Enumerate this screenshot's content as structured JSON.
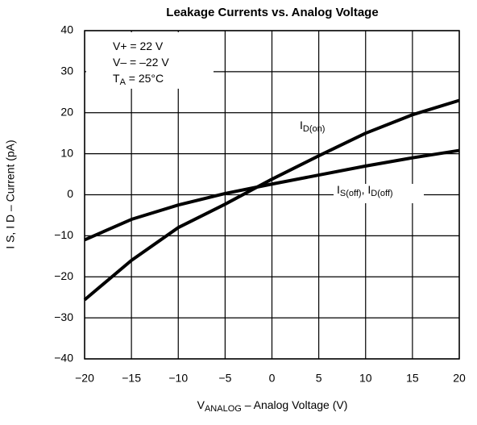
{
  "chart_data": {
    "type": "line",
    "title": "Leakage Currents vs. Analog Voltage",
    "x_label_parts": [
      "V",
      "ANALOG",
      " – Analog Voltage (V)"
    ],
    "y_label": "I S, I D – Current (pA)",
    "annotations": [
      [
        "V+ = 22 V"
      ],
      [
        "V– = –22 V"
      ],
      [
        "T",
        "A",
        " = 25°C"
      ]
    ],
    "x": [
      -20,
      -15,
      -10,
      -5,
      0,
      5,
      10,
      15,
      20
    ],
    "series": [
      {
        "name_parts": [
          "I",
          "D(on)"
        ],
        "color": "#000000",
        "values": [
          -25.6,
          -16,
          -8,
          -2.3,
          3.8,
          9.5,
          15,
          19.5,
          23
        ]
      },
      {
        "name_parts": [
          "I",
          "S(off)",
          ", I",
          "D(off)"
        ],
        "color": "#000000",
        "values": [
          -11,
          -6,
          -2.5,
          0.3,
          2.6,
          4.8,
          7,
          9,
          10.8
        ]
      }
    ],
    "xlim": [
      -20,
      20
    ],
    "xticks": [
      {
        "value": -20,
        "label": "−20"
      },
      {
        "value": -15,
        "label": "−15"
      },
      {
        "value": -10,
        "label": "−10"
      },
      {
        "value": -5,
        "label": "−5"
      },
      0,
      5,
      10,
      15,
      20
    ],
    "ylim": [
      -40,
      40
    ],
    "yticks": [
      {
        "value": -40,
        "label": "−40"
      },
      {
        "value": -30,
        "label": "−30"
      },
      {
        "value": -20,
        "label": "−20"
      },
      {
        "value": -10,
        "label": "−10"
      },
      0,
      10,
      20,
      30,
      40
    ],
    "grid": true
  }
}
